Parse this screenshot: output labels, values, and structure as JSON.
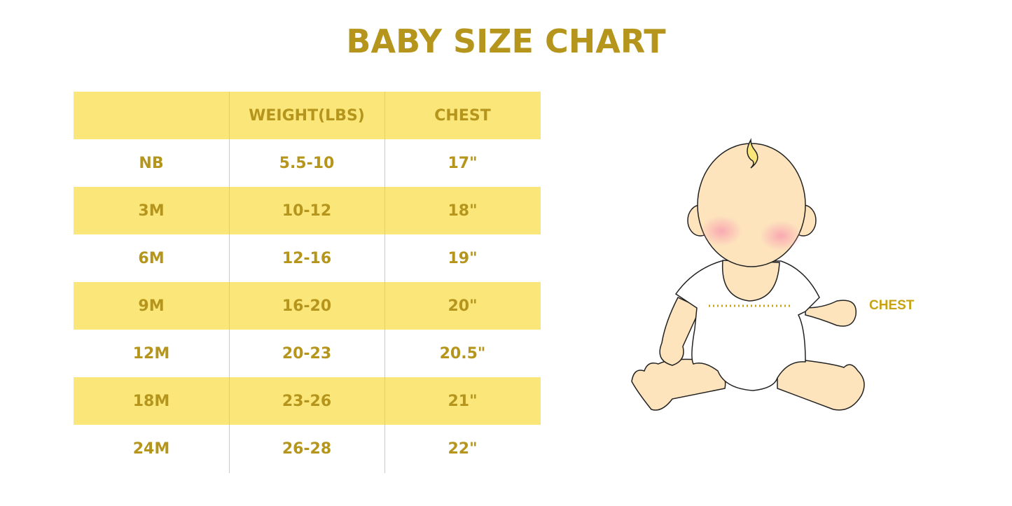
{
  "title": "BABY SIZE CHART",
  "table": {
    "headers": [
      "",
      "WEIGHT(LBS)",
      "CHEST"
    ],
    "rows": [
      [
        "NB",
        "5.5-10",
        "17\""
      ],
      [
        "3M",
        "10-12",
        "18\""
      ],
      [
        "6M",
        "12-16",
        "19\""
      ],
      [
        "9M",
        "16-20",
        "20\""
      ],
      [
        "12M",
        "20-23",
        "20.5\""
      ],
      [
        "18M",
        "23-26",
        "21\""
      ],
      [
        "24M",
        "26-28",
        "22\""
      ]
    ]
  },
  "illustration": {
    "chest_label": "CHEST"
  },
  "colors": {
    "text": "#b5951c",
    "band": "#fbe67a",
    "skin": "#fde4bd"
  }
}
